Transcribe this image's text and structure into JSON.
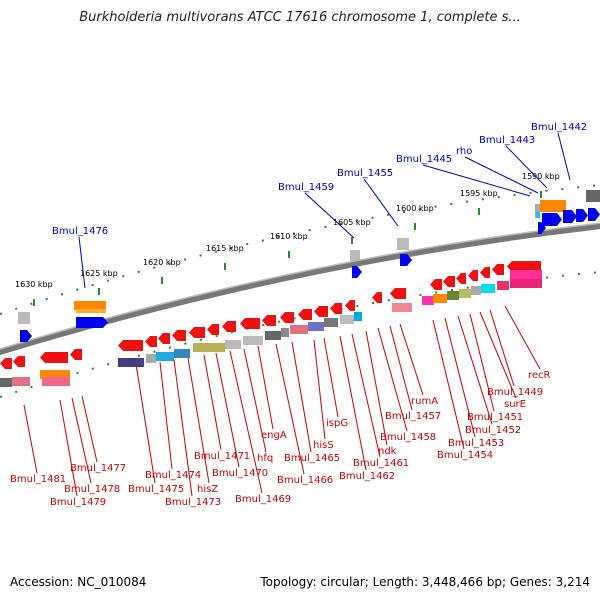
{
  "title": "Burkholderia multivorans ATCC 17616 chromosome 1, complete s...",
  "footer": {
    "accession": "Accession: NC_010084",
    "info": "Topology: circular; Length: 3,448,466 bp; Genes: 3,214"
  },
  "scale_labels": [
    "1590 kbp",
    "1595 kbp",
    "1600 kbp",
    "1605 kbp",
    "1610 kbp",
    "1615 kbp",
    "1620 kbp",
    "1625 kbp",
    "1630 kbp"
  ],
  "top_labels": [
    "Bmul_1442",
    "Bmul_1443",
    "rho",
    "Bmul_1445",
    "Bmul_1455",
    "Bmul_1459",
    "Bmul_1476"
  ],
  "bottom_labels": [
    "recR",
    "Bmul_1449",
    "surE",
    "Bmul_1451",
    "Bmul_1452",
    "Bmul_1453",
    "Bmul_1454",
    "rumA",
    "Bmul_1457",
    "Bmul_1458",
    "ndk",
    "Bmul_1461",
    "Bmul_1462",
    "ispG",
    "hisS",
    "Bmul_1465",
    "Bmul_1466",
    "engA",
    "hfq",
    "Bmul_1469",
    "Bmul_1470",
    "Bmul_1471",
    "hisZ",
    "Bmul_1473",
    "Bmul_1474",
    "Bmul_1475",
    "Bmul_1477",
    "Bmul_1478",
    "Bmul_1479",
    "Bmul_1481"
  ]
}
